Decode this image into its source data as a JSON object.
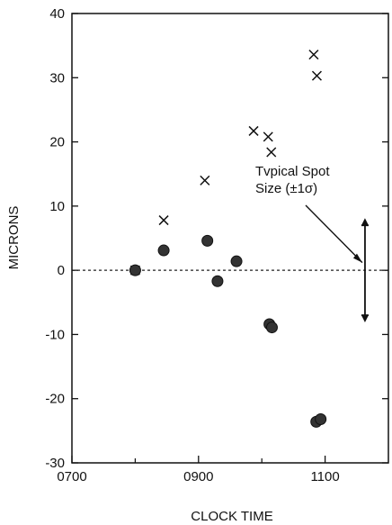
{
  "chart_data": {
    "type": "scatter",
    "xlabel": "CLOCK TIME",
    "ylabel": "MICRONS",
    "xlim": [
      700,
      1200
    ],
    "ylim": [
      -30,
      40
    ],
    "x_ticks": [
      {
        "value": 700,
        "label": "0700"
      },
      {
        "value": 900,
        "label": "0900"
      },
      {
        "value": 1100,
        "label": "1100"
      }
    ],
    "y_ticks": [
      {
        "value": 40,
        "label": "40"
      },
      {
        "value": 30,
        "label": "30"
      },
      {
        "value": 20,
        "label": "20"
      },
      {
        "value": 10,
        "label": "10"
      },
      {
        "value": 0,
        "label": "0"
      },
      {
        "value": -10,
        "label": "-10"
      },
      {
        "value": -20,
        "label": "-20"
      },
      {
        "value": -30,
        "label": "-30"
      }
    ],
    "reference_line": {
      "y": 0,
      "style": "dashed"
    },
    "series": [
      {
        "marker": "x",
        "color": "#111111",
        "points": [
          {
            "x": 800,
            "y": 0
          },
          {
            "x": 845,
            "y": 7.8
          },
          {
            "x": 910,
            "y": 14
          },
          {
            "x": 987,
            "y": 21.7
          },
          {
            "x": 1010,
            "y": 20.8
          },
          {
            "x": 1015,
            "y": 18.4
          },
          {
            "x": 1082,
            "y": 33.6
          },
          {
            "x": 1087,
            "y": 30.3
          }
        ]
      },
      {
        "marker": "filled-circle",
        "color": "#333333",
        "points": [
          {
            "x": 800,
            "y": 0
          },
          {
            "x": 845,
            "y": 3.1
          },
          {
            "x": 914,
            "y": 4.6
          },
          {
            "x": 930,
            "y": -1.7
          },
          {
            "x": 960,
            "y": 1.4
          },
          {
            "x": 1012,
            "y": -8.4
          },
          {
            "x": 1016,
            "y": -8.9
          },
          {
            "x": 1086,
            "y": -23.6
          },
          {
            "x": 1093,
            "y": -23.2
          }
        ]
      }
    ],
    "annotation": {
      "lines": [
        "Tvpical Spot",
        "Size (±1σ)"
      ],
      "error_bar": {
        "x": 1163,
        "y_low": -7,
        "y_high": 7
      }
    }
  }
}
